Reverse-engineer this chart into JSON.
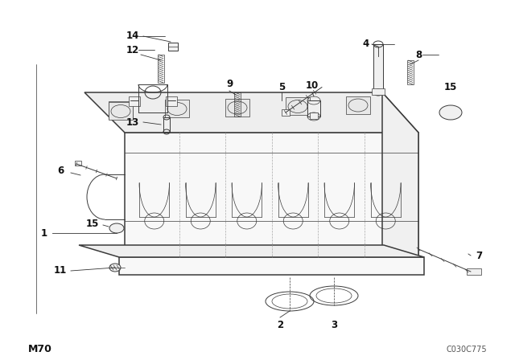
{
  "bg_color": "#ffffff",
  "line_color": "#3a3a3a",
  "fig_width": 6.4,
  "fig_height": 4.48,
  "dpi": 100,
  "bottom_left_label": "M70",
  "bottom_right_label": "C030C775",
  "lw_main": 1.1,
  "lw_detail": 0.7,
  "lw_thin": 0.5
}
